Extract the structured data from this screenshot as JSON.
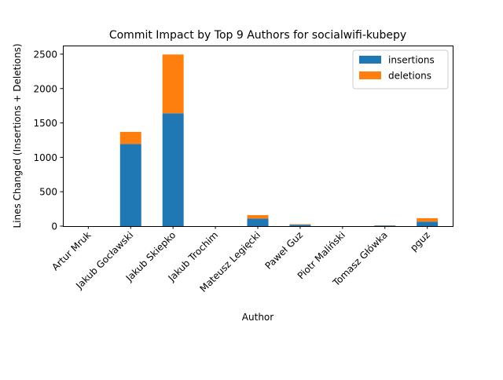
{
  "chart_data": {
    "type": "bar",
    "stacked": true,
    "title": "Commit Impact by Top 9 Authors for socialwifi-kubepy",
    "xlabel": "Author",
    "ylabel": "Lines Changed (Insertions + Deletions)",
    "categories": [
      "Artur Mruk",
      "Jakub Gocławski",
      "Jakub Skiepko",
      "Jakub Trochim",
      "Mateusz Legięcki",
      "Paweł Guz",
      "Piotr Maliński",
      "Tomasz Główka",
      "pguz"
    ],
    "series": [
      {
        "name": "insertions",
        "color": "#1f77b4",
        "values": [
          0,
          1195,
          1640,
          0,
          110,
          20,
          0,
          8,
          65
        ]
      },
      {
        "name": "deletions",
        "color": "#ff7f0e",
        "values": [
          0,
          175,
          855,
          0,
          50,
          8,
          0,
          2,
          50
        ]
      }
    ],
    "ylim": [
      0,
      2625
    ],
    "yticks": [
      0,
      500,
      1000,
      1500,
      2000,
      2500
    ],
    "legend_position": "top-right",
    "grid": false
  }
}
